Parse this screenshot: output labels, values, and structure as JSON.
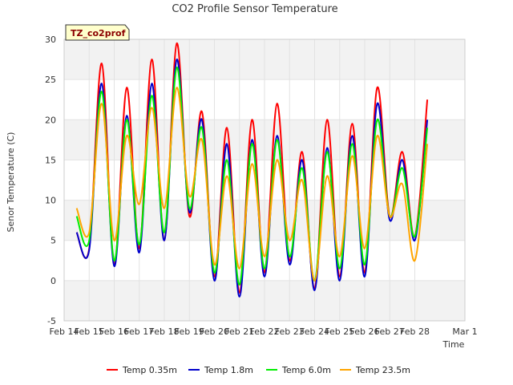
{
  "chart_data": {
    "type": "line",
    "title": "CO2 Profile Sensor Temperature",
    "xlabel": "Time",
    "ylabel": "Senor Temperature (C)",
    "site_badge": "TZ_co2prof",
    "ylim": [
      -5,
      30
    ],
    "yticks": [
      -5,
      0,
      5,
      10,
      15,
      20,
      25,
      30
    ],
    "xlim": [
      "2016-02-14",
      "2016-03-01"
    ],
    "xticks": [
      {
        "date": "2016-02-14",
        "label": "Feb 14"
      },
      {
        "date": "2016-02-15",
        "label": "Feb 15"
      },
      {
        "date": "2016-02-16",
        "label": "Feb 16"
      },
      {
        "date": "2016-02-17",
        "label": "Feb 17"
      },
      {
        "date": "2016-02-18",
        "label": "Feb 18"
      },
      {
        "date": "2016-02-19",
        "label": "Feb 19"
      },
      {
        "date": "2016-02-20",
        "label": "Feb 20"
      },
      {
        "date": "2016-02-21",
        "label": "Feb 21"
      },
      {
        "date": "2016-02-22",
        "label": "Feb 22"
      },
      {
        "date": "2016-02-23",
        "label": "Feb 23"
      },
      {
        "date": "2016-02-24",
        "label": "Feb 24"
      },
      {
        "date": "2016-02-25",
        "label": "Feb 25"
      },
      {
        "date": "2016-02-26",
        "label": "Feb 26"
      },
      {
        "date": "2016-02-27",
        "label": "Feb 27"
      },
      {
        "date": "2016-02-28",
        "label": "Feb 28"
      },
      {
        "date": "2016-03-01",
        "label": "Mar 1"
      }
    ],
    "grid": true,
    "background_bands": true,
    "legend_position": "bottom",
    "x": [
      "2016-02-14 12:00",
      "2016-02-15 00:00",
      "2016-02-15 12:00",
      "2016-02-16 00:00",
      "2016-02-16 12:00",
      "2016-02-17 00:00",
      "2016-02-17 12:00",
      "2016-02-18 00:00",
      "2016-02-18 12:00",
      "2016-02-19 00:00",
      "2016-02-19 12:00",
      "2016-02-20 00:00",
      "2016-02-20 12:00",
      "2016-02-21 00:00",
      "2016-02-21 12:00",
      "2016-02-22 00:00",
      "2016-02-22 12:00",
      "2016-02-23 00:00",
      "2016-02-23 12:00",
      "2016-02-24 00:00",
      "2016-02-24 12:00",
      "2016-02-25 00:00",
      "2016-02-25 12:00",
      "2016-02-26 00:00",
      "2016-02-26 12:00",
      "2016-02-27 00:00",
      "2016-02-27 12:00",
      "2016-02-28 00:00",
      "2016-02-28 12:00"
    ],
    "series": [
      {
        "name": "Temp 0.35m",
        "color": "#ff0000",
        "values": [
          6.0,
          4.0,
          27.0,
          2.0,
          24.0,
          4.0,
          27.5,
          5.0,
          29.5,
          8.0,
          21.0,
          0.5,
          19.0,
          -1.5,
          20.0,
          1.0,
          22.0,
          2.5,
          16.0,
          -1.0,
          20.0,
          0.5,
          19.5,
          1.0,
          24.0,
          8.0,
          16.0,
          5.5,
          22.5
        ]
      },
      {
        "name": "Temp 1.8m",
        "color": "#0000cc",
        "values": [
          6.0,
          3.8,
          24.5,
          1.8,
          20.5,
          3.5,
          24.5,
          5.0,
          27.5,
          8.5,
          20.0,
          0.0,
          17.0,
          -2.0,
          17.5,
          0.5,
          18.0,
          2.0,
          15.0,
          -1.2,
          16.5,
          0.0,
          18.0,
          0.5,
          22.0,
          7.5,
          15.0,
          5.0,
          20.0
        ]
      },
      {
        "name": "Temp 6.0m",
        "color": "#00ee00",
        "values": [
          8.0,
          5.0,
          23.5,
          2.5,
          20.0,
          4.5,
          23.0,
          6.0,
          26.5,
          9.0,
          19.0,
          1.0,
          15.0,
          -0.5,
          17.0,
          1.5,
          17.5,
          3.0,
          14.0,
          0.0,
          16.0,
          1.5,
          17.0,
          2.0,
          20.0,
          8.0,
          14.0,
          5.5,
          19.0
        ]
      },
      {
        "name": "Temp 23.5m",
        "color": "#ffa500",
        "values": [
          9.0,
          6.0,
          22.0,
          5.0,
          18.0,
          9.5,
          21.5,
          9.0,
          24.0,
          10.5,
          17.5,
          2.0,
          13.0,
          1.5,
          14.5,
          3.0,
          15.0,
          5.0,
          12.5,
          0.0,
          13.0,
          3.0,
          15.5,
          4.0,
          18.0,
          8.0,
          12.0,
          2.5,
          17.0
        ]
      }
    ]
  }
}
